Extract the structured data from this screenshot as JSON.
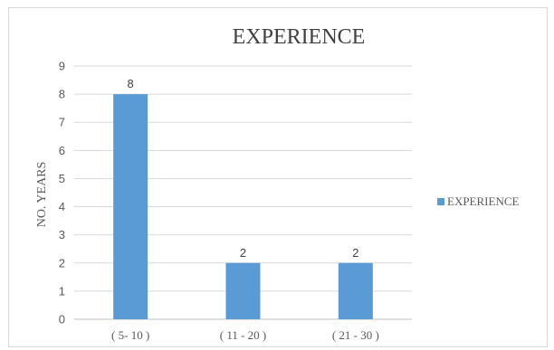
{
  "chart_data": {
    "type": "bar",
    "title": "EXPERIENCE",
    "ylabel": "NO. YEARS",
    "xlabel": "",
    "categories": [
      "( 5- 10 )",
      "( 11 - 20 )",
      "( 21 - 30 )"
    ],
    "series": [
      {
        "name": "EXPERIENCE",
        "values": [
          8,
          2,
          2
        ],
        "color": "#5b9bd5"
      }
    ],
    "ylim": [
      0,
      9
    ],
    "yticks": [
      0,
      1,
      2,
      3,
      4,
      5,
      6,
      7,
      8,
      9
    ],
    "grid": true,
    "legend": "right"
  }
}
